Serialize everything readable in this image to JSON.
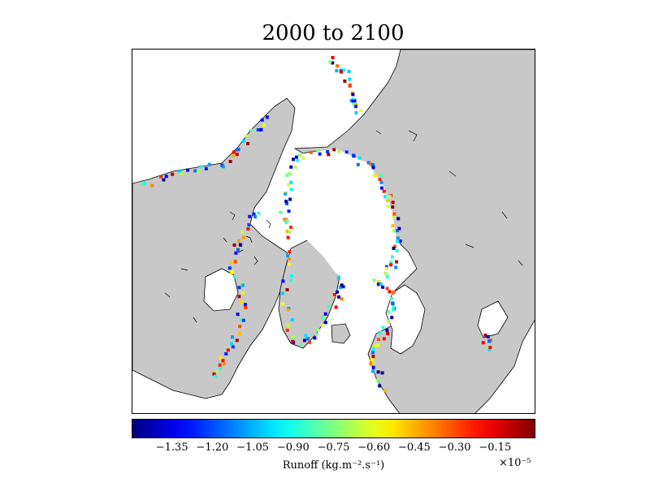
{
  "title": "2000 to 2100",
  "colorbar": {
    "ticks": [
      "−1.35",
      "−1.20",
      "−1.05",
      "−0.90",
      "−0.75",
      "−0.60",
      "−0.45",
      "−0.30",
      "−0.15"
    ],
    "tick_values": [
      -1.35,
      -1.2,
      -1.05,
      -0.9,
      -0.75,
      -0.6,
      -0.45,
      -0.3,
      -0.15
    ],
    "range": [
      -1.5,
      0.0
    ],
    "label": "Runoff (kg.m⁻².s⁻¹)",
    "multiplier": "×10⁻⁵",
    "colormap": "jet"
  },
  "colors": {
    "land": "#c8c8c8",
    "ocean": "#ffffff",
    "coast": "#000000"
  }
}
